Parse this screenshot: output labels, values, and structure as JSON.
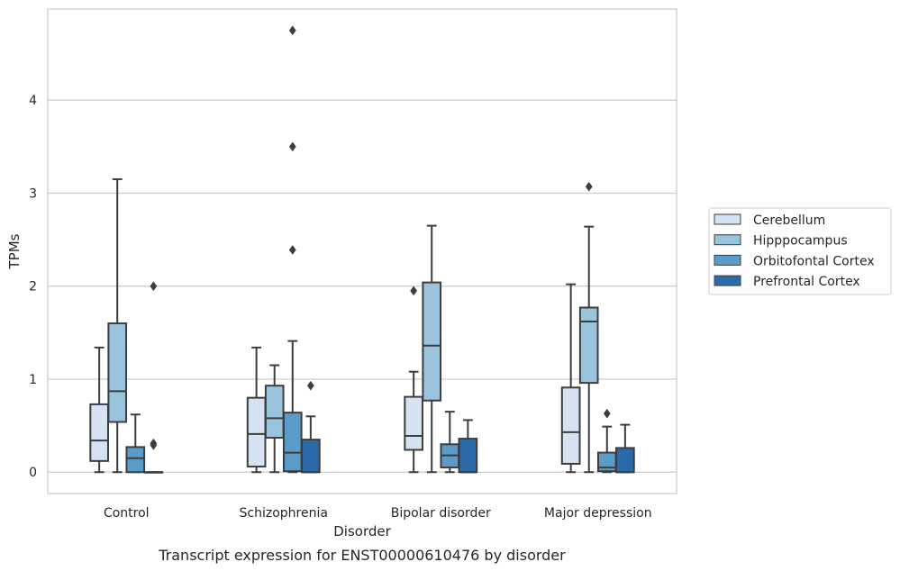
{
  "caption": "Transcript expression for ENST00000610476 by disorder",
  "chart_data": {
    "type": "box",
    "xlabel": "Disorder",
    "ylabel": "TPMs",
    "ylim": [
      -0.23,
      4.98
    ],
    "yticks": [
      0,
      1,
      2,
      3,
      4
    ],
    "grid": true,
    "legend_position": "right",
    "categories": [
      "Control",
      "Schizophrenia",
      "Bipolar disorder",
      "Major depression"
    ],
    "series": [
      {
        "name": "Cerebellum",
        "color": "#d4e2f1",
        "boxes": [
          {
            "whisker_low": 0,
            "q1": 0.12,
            "median": 0.34,
            "q3": 0.73,
            "whisker_high": 1.34,
            "outliers": []
          },
          {
            "whisker_low": 0,
            "q1": 0.06,
            "median": 0.41,
            "q3": 0.8,
            "whisker_high": 1.34,
            "outliers": []
          },
          {
            "whisker_low": 0,
            "q1": 0.24,
            "median": 0.39,
            "q3": 0.81,
            "whisker_high": 1.08,
            "outliers": [
              1.95
            ]
          },
          {
            "whisker_low": 0,
            "q1": 0.09,
            "median": 0.43,
            "q3": 0.91,
            "whisker_high": 2.02,
            "outliers": []
          }
        ]
      },
      {
        "name": "Hipppocampus",
        "color": "#9ac3dd",
        "boxes": [
          {
            "whisker_low": 0,
            "q1": 0.54,
            "median": 0.87,
            "q3": 1.6,
            "whisker_high": 3.15,
            "outliers": []
          },
          {
            "whisker_low": 0,
            "q1": 0.37,
            "median": 0.58,
            "q3": 0.93,
            "whisker_high": 1.15,
            "outliers": []
          },
          {
            "whisker_low": 0,
            "q1": 0.77,
            "median": 1.36,
            "q3": 2.04,
            "whisker_high": 2.65,
            "outliers": []
          },
          {
            "whisker_low": 0,
            "q1": 0.96,
            "median": 1.62,
            "q3": 1.77,
            "whisker_high": 2.64,
            "outliers": [
              3.07
            ]
          }
        ]
      },
      {
        "name": "Orbitofontal Cortex",
        "color": "#5b9bc9",
        "boxes": [
          {
            "whisker_low": 0,
            "q1": 0,
            "median": 0.15,
            "q3": 0.27,
            "whisker_high": 0.62,
            "outliers": []
          },
          {
            "whisker_low": 0,
            "q1": 0.01,
            "median": 0.21,
            "q3": 0.64,
            "whisker_high": 1.41,
            "outliers": [
              2.39,
              3.5,
              4.75
            ]
          },
          {
            "whisker_low": 0,
            "q1": 0.05,
            "median": 0.18,
            "q3": 0.3,
            "whisker_high": 0.65,
            "outliers": []
          },
          {
            "whisker_low": 0,
            "q1": 0.01,
            "median": 0.05,
            "q3": 0.21,
            "whisker_high": 0.49,
            "outliers": [
              0.63
            ]
          }
        ]
      },
      {
        "name": "Prefrontal Cortex",
        "color": "#2b6aa8",
        "boxes": [
          {
            "whisker_low": 0,
            "q1": 0,
            "median": 0,
            "q3": 0,
            "whisker_high": 0,
            "outliers": [
              0.29,
              0.31,
              2.0
            ]
          },
          {
            "whisker_low": 0,
            "q1": 0,
            "median": 0,
            "q3": 0.35,
            "whisker_high": 0.6,
            "outliers": [
              0.93
            ]
          },
          {
            "whisker_low": 0,
            "q1": 0,
            "median": 0,
            "q3": 0.36,
            "whisker_high": 0.56,
            "outliers": []
          },
          {
            "whisker_low": 0,
            "q1": 0,
            "median": 0,
            "q3": 0.26,
            "whisker_high": 0.51,
            "outliers": []
          }
        ]
      }
    ]
  }
}
